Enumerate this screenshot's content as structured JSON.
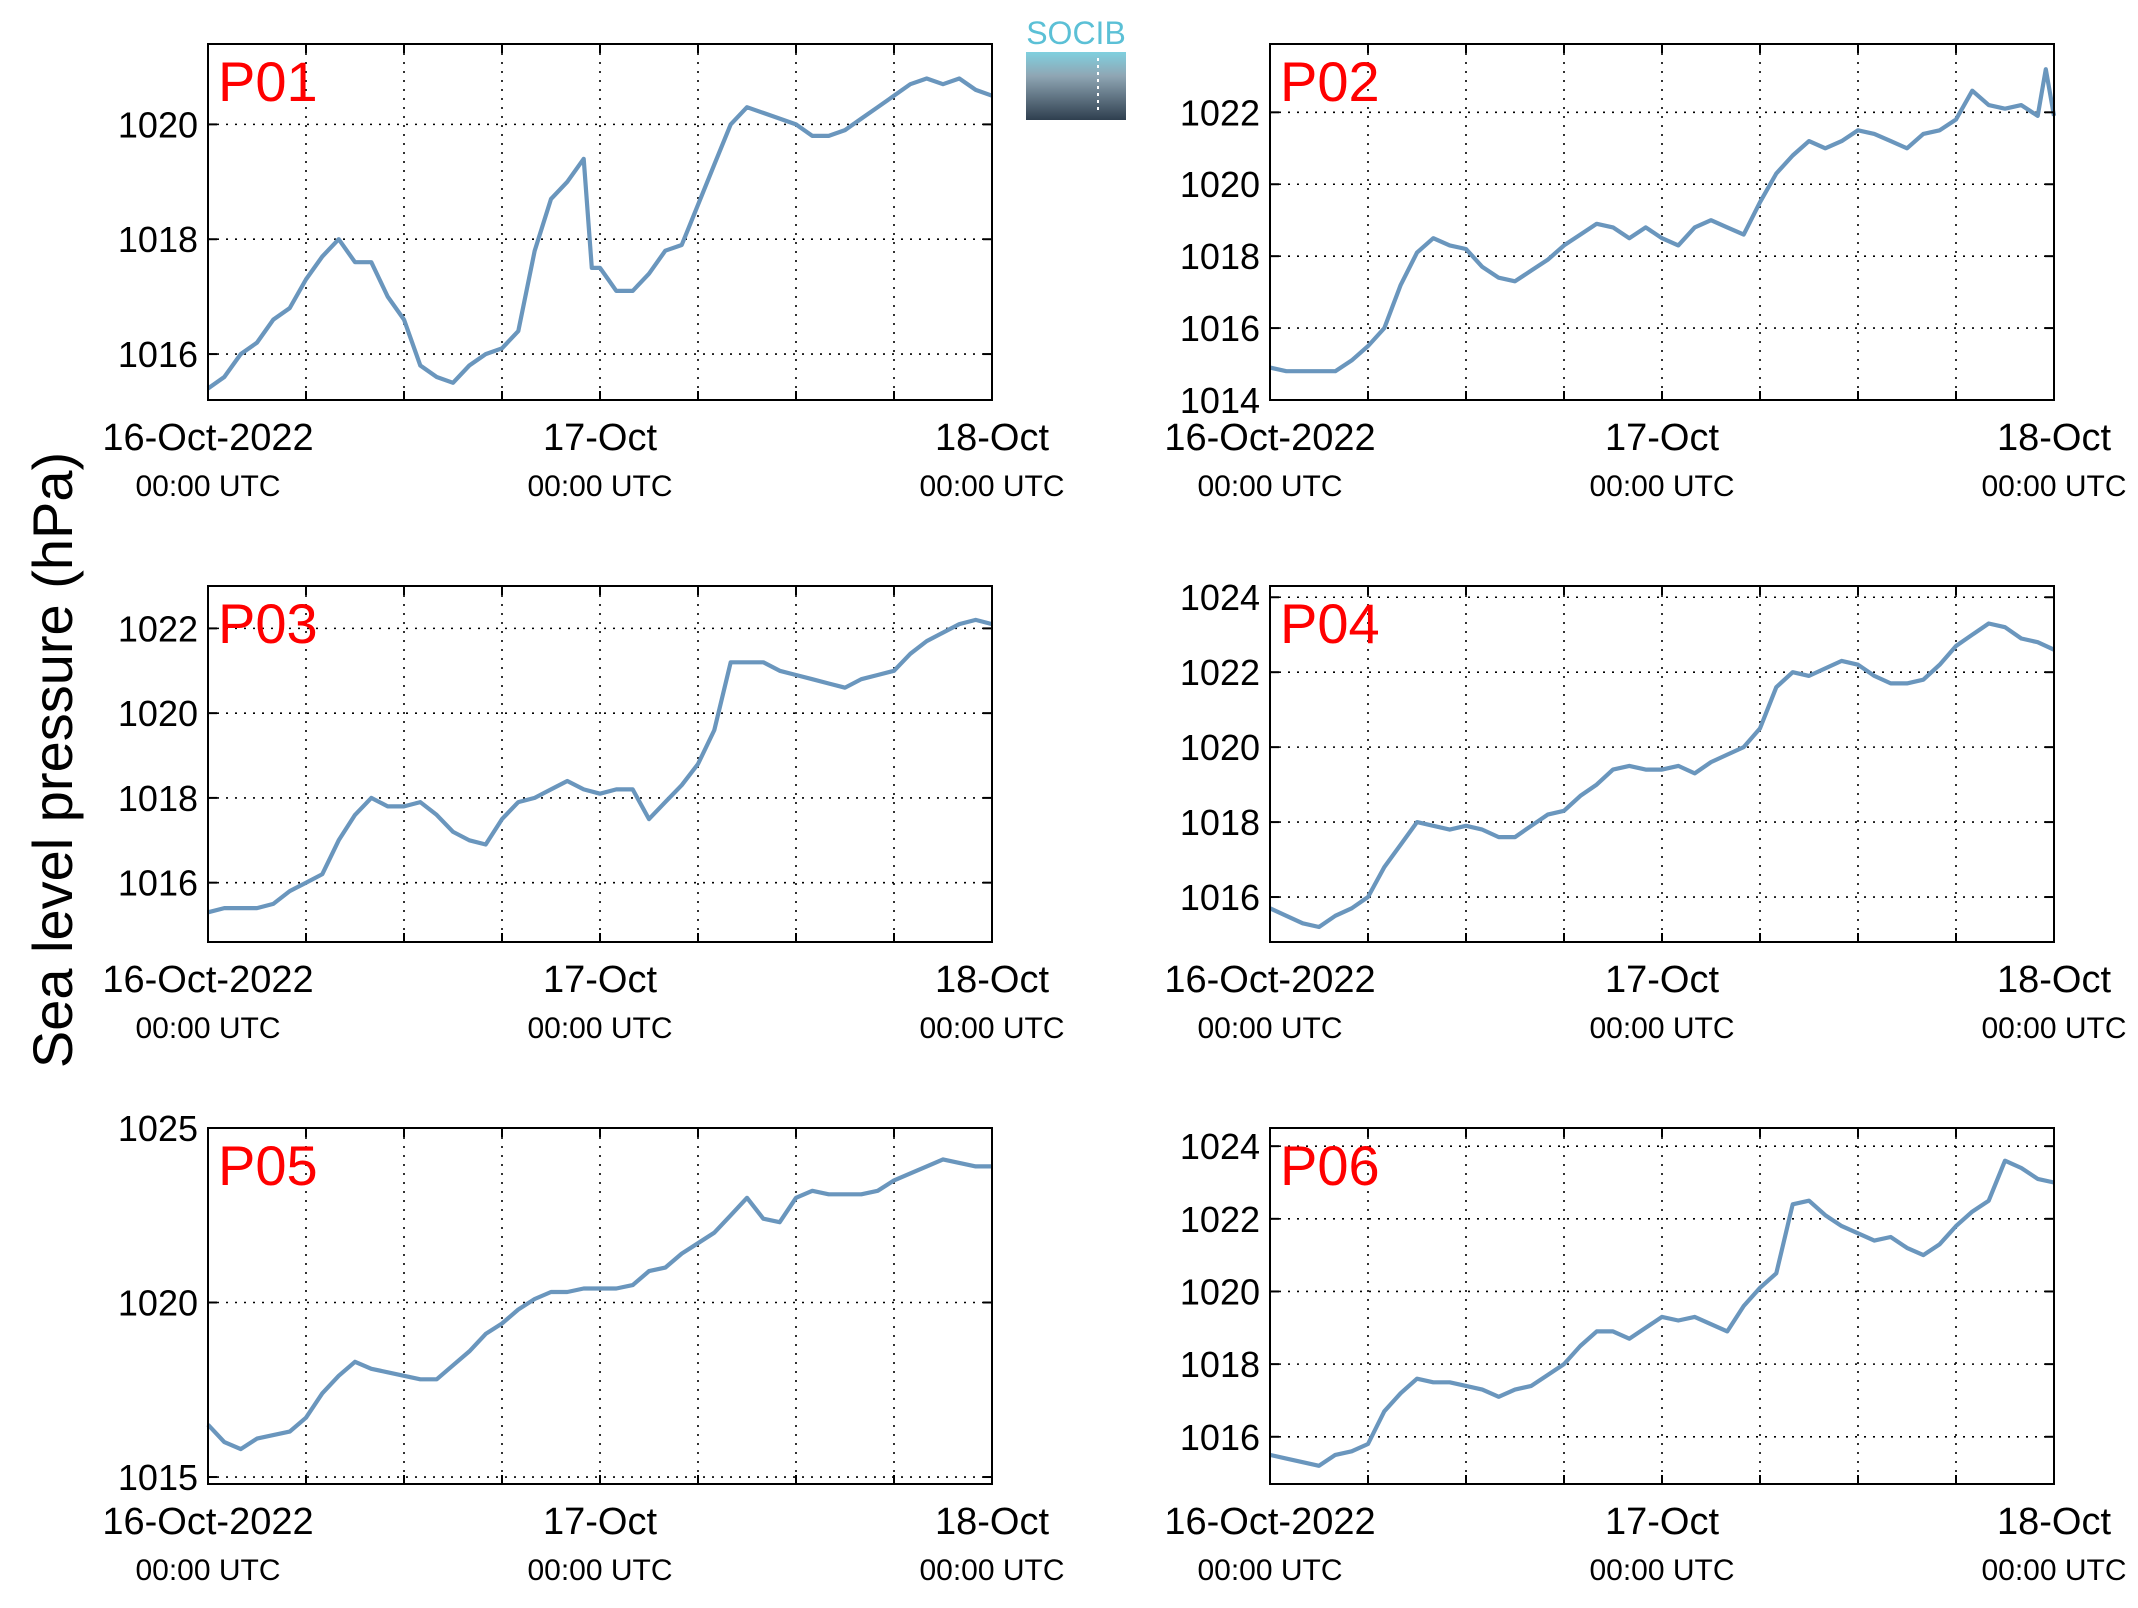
{
  "figure": {
    "ylabel": "Sea level pressure (hPa)",
    "logo_text": "SOCIB",
    "series_color": "#6a96bd",
    "station_label_color": "#ff0000",
    "x_tick_labels": [
      "16-Oct-2022",
      "17-Oct",
      "18-Oct"
    ],
    "x_tick_sublabels": [
      "00:00 UTC",
      "00:00 UTC",
      "00:00 UTC"
    ]
  },
  "chart_data": [
    {
      "type": "line",
      "station": "P01",
      "x_unit": "hours since 16-Oct-2022 00:00 UTC",
      "xlim": [
        0,
        48
      ],
      "ylim": [
        1015.2,
        1021.4
      ],
      "yticks": [
        1016,
        1018,
        1020
      ],
      "grid": true,
      "x": [
        0,
        1,
        2,
        3,
        4,
        5,
        6,
        7,
        8,
        9,
        10,
        11,
        12,
        13,
        14,
        15,
        16,
        17,
        18,
        19,
        20,
        21,
        22,
        23,
        23.5,
        24,
        24.5,
        25,
        26,
        27,
        28,
        29,
        30,
        31,
        32,
        33,
        34,
        35,
        36,
        37,
        38,
        39,
        40,
        41,
        42,
        43,
        44,
        45,
        46,
        47,
        48
      ],
      "y": [
        1015.4,
        1015.6,
        1016.0,
        1016.2,
        1016.6,
        1016.8,
        1017.3,
        1017.7,
        1018.0,
        1017.6,
        1017.6,
        1017.0,
        1016.6,
        1015.8,
        1015.6,
        1015.5,
        1015.8,
        1016.0,
        1016.1,
        1016.4,
        1017.8,
        1018.7,
        1019.0,
        1019.4,
        1017.5,
        1017.5,
        1017.3,
        1017.1,
        1017.1,
        1017.4,
        1017.8,
        1017.9,
        1018.6,
        1019.3,
        1020.0,
        1020.3,
        1020.2,
        1020.1,
        1020.0,
        1019.8,
        1019.8,
        1019.9,
        1020.1,
        1020.3,
        1020.5,
        1020.7,
        1020.8,
        1020.7,
        1020.8,
        1020.6,
        1020.5
      ]
    },
    {
      "type": "line",
      "station": "P02",
      "x_unit": "hours since 16-Oct-2022 00:00 UTC",
      "xlim": [
        0,
        48
      ],
      "ylim": [
        1014,
        1023.9
      ],
      "yticks": [
        1014,
        1016,
        1018,
        1020,
        1022
      ],
      "grid": true,
      "x": [
        0,
        1,
        2,
        3,
        4,
        5,
        6,
        7,
        8,
        9,
        10,
        11,
        12,
        13,
        14,
        15,
        16,
        17,
        18,
        19,
        20,
        21,
        22,
        23,
        24,
        25,
        26,
        27,
        28,
        29,
        30,
        31,
        32,
        33,
        34,
        35,
        36,
        37,
        38,
        39,
        40,
        41,
        42,
        43,
        44,
        45,
        46,
        47,
        47.5,
        48
      ],
      "y": [
        1014.9,
        1014.8,
        1014.8,
        1014.8,
        1014.8,
        1015.1,
        1015.5,
        1016.0,
        1017.2,
        1018.1,
        1018.5,
        1018.3,
        1018.2,
        1017.7,
        1017.4,
        1017.3,
        1017.6,
        1017.9,
        1018.3,
        1018.6,
        1018.9,
        1018.8,
        1018.5,
        1018.8,
        1018.5,
        1018.3,
        1018.8,
        1019.0,
        1018.8,
        1018.6,
        1019.5,
        1020.3,
        1020.8,
        1021.2,
        1021.0,
        1021.2,
        1021.5,
        1021.4,
        1021.2,
        1021.0,
        1021.4,
        1021.5,
        1021.8,
        1022.6,
        1022.2,
        1022.1,
        1022.2,
        1021.9,
        1023.2,
        1021.9
      ]
    },
    {
      "type": "line",
      "station": "P03",
      "x_unit": "hours since 16-Oct-2022 00:00 UTC",
      "xlim": [
        0,
        48
      ],
      "ylim": [
        1014.6,
        1023
      ],
      "yticks": [
        1016,
        1018,
        1020,
        1022
      ],
      "grid": true,
      "x": [
        0,
        1,
        2,
        3,
        4,
        5,
        6,
        7,
        8,
        9,
        10,
        11,
        12,
        13,
        14,
        15,
        16,
        17,
        18,
        19,
        20,
        21,
        22,
        23,
        24,
        25,
        26,
        27,
        28,
        29,
        30,
        31,
        32,
        33,
        34,
        35,
        36,
        37,
        38,
        39,
        40,
        41,
        42,
        43,
        44,
        45,
        46,
        47,
        48
      ],
      "y": [
        1015.3,
        1015.4,
        1015.4,
        1015.4,
        1015.5,
        1015.8,
        1016.0,
        1016.2,
        1017.0,
        1017.6,
        1018.0,
        1017.8,
        1017.8,
        1017.9,
        1017.6,
        1017.2,
        1017.0,
        1016.9,
        1017.5,
        1017.9,
        1018.0,
        1018.2,
        1018.4,
        1018.2,
        1018.1,
        1018.2,
        1018.2,
        1017.5,
        1017.9,
        1018.3,
        1018.8,
        1019.6,
        1021.2,
        1021.2,
        1021.2,
        1021.0,
        1020.9,
        1020.8,
        1020.7,
        1020.6,
        1020.8,
        1020.9,
        1021.0,
        1021.4,
        1021.7,
        1021.9,
        1022.1,
        1022.2,
        1022.1
      ]
    },
    {
      "type": "line",
      "station": "P04",
      "x_unit": "hours since 16-Oct-2022 00:00 UTC",
      "xlim": [
        0,
        48
      ],
      "ylim": [
        1014.8,
        1024.3
      ],
      "yticks": [
        1016,
        1018,
        1020,
        1022,
        1024
      ],
      "grid": true,
      "x": [
        0,
        1,
        2,
        3,
        4,
        5,
        6,
        7,
        8,
        9,
        10,
        11,
        12,
        13,
        14,
        15,
        16,
        17,
        18,
        19,
        20,
        21,
        22,
        23,
        24,
        25,
        26,
        27,
        28,
        29,
        30,
        31,
        32,
        33,
        34,
        35,
        36,
        37,
        38,
        39,
        40,
        41,
        42,
        43,
        44,
        45,
        46,
        47,
        48
      ],
      "y": [
        1015.7,
        1015.5,
        1015.3,
        1015.2,
        1015.5,
        1015.7,
        1016.0,
        1016.8,
        1017.4,
        1018.0,
        1017.9,
        1017.8,
        1017.9,
        1017.8,
        1017.6,
        1017.6,
        1017.9,
        1018.2,
        1018.3,
        1018.7,
        1019.0,
        1019.4,
        1019.5,
        1019.4,
        1019.4,
        1019.5,
        1019.3,
        1019.6,
        1019.8,
        1020.0,
        1020.5,
        1021.6,
        1022.0,
        1021.9,
        1022.1,
        1022.3,
        1022.2,
        1021.9,
        1021.7,
        1021.7,
        1021.8,
        1022.2,
        1022.7,
        1023.0,
        1023.3,
        1023.2,
        1022.9,
        1022.8,
        1022.6
      ]
    },
    {
      "type": "line",
      "station": "P05",
      "x_unit": "hours since 16-Oct-2022 00:00 UTC",
      "xlim": [
        0,
        48
      ],
      "ylim": [
        1014.8,
        1025
      ],
      "yticks": [
        1015,
        1020,
        1025
      ],
      "grid": true,
      "x": [
        0,
        1,
        2,
        3,
        4,
        5,
        6,
        7,
        8,
        9,
        10,
        11,
        12,
        13,
        14,
        15,
        16,
        17,
        18,
        19,
        20,
        21,
        22,
        23,
        24,
        25,
        26,
        27,
        28,
        29,
        30,
        31,
        32,
        33,
        34,
        35,
        36,
        37,
        38,
        39,
        40,
        41,
        42,
        43,
        44,
        45,
        46,
        47,
        48
      ],
      "y": [
        1016.5,
        1016.0,
        1015.8,
        1016.1,
        1016.2,
        1016.3,
        1016.7,
        1017.4,
        1017.9,
        1018.3,
        1018.1,
        1018.0,
        1017.9,
        1017.8,
        1017.8,
        1018.2,
        1018.6,
        1019.1,
        1019.4,
        1019.8,
        1020.1,
        1020.3,
        1020.3,
        1020.4,
        1020.4,
        1020.4,
        1020.5,
        1020.9,
        1021.0,
        1021.4,
        1021.7,
        1022.0,
        1022.5,
        1023.0,
        1022.4,
        1022.3,
        1023.0,
        1023.2,
        1023.1,
        1023.1,
        1023.1,
        1023.2,
        1023.5,
        1023.7,
        1023.9,
        1024.1,
        1024.0,
        1023.9,
        1023.9
      ]
    },
    {
      "type": "line",
      "station": "P06",
      "x_unit": "hours since 16-Oct-2022 00:00 UTC",
      "xlim": [
        0,
        48
      ],
      "ylim": [
        1014.7,
        1024.5
      ],
      "yticks": [
        1016,
        1018,
        1020,
        1022,
        1024
      ],
      "grid": true,
      "x": [
        0,
        1,
        2,
        3,
        4,
        5,
        6,
        7,
        8,
        9,
        10,
        11,
        12,
        13,
        14,
        15,
        16,
        17,
        18,
        19,
        20,
        21,
        22,
        23,
        24,
        25,
        26,
        27,
        28,
        29,
        30,
        31,
        32,
        33,
        34,
        35,
        36,
        37,
        38,
        39,
        40,
        41,
        42,
        43,
        44,
        45,
        46,
        47,
        48
      ],
      "y": [
        1015.5,
        1015.4,
        1015.3,
        1015.2,
        1015.5,
        1015.6,
        1015.8,
        1016.7,
        1017.2,
        1017.6,
        1017.5,
        1017.5,
        1017.4,
        1017.3,
        1017.1,
        1017.3,
        1017.4,
        1017.7,
        1018.0,
        1018.5,
        1018.9,
        1018.9,
        1018.7,
        1019.0,
        1019.3,
        1019.2,
        1019.3,
        1019.1,
        1018.9,
        1019.6,
        1020.1,
        1020.5,
        1022.4,
        1022.5,
        1022.1,
        1021.8,
        1021.6,
        1021.4,
        1021.5,
        1021.2,
        1021.0,
        1021.3,
        1021.8,
        1022.2,
        1022.5,
        1023.6,
        1023.4,
        1023.1,
        1023.0
      ]
    }
  ]
}
